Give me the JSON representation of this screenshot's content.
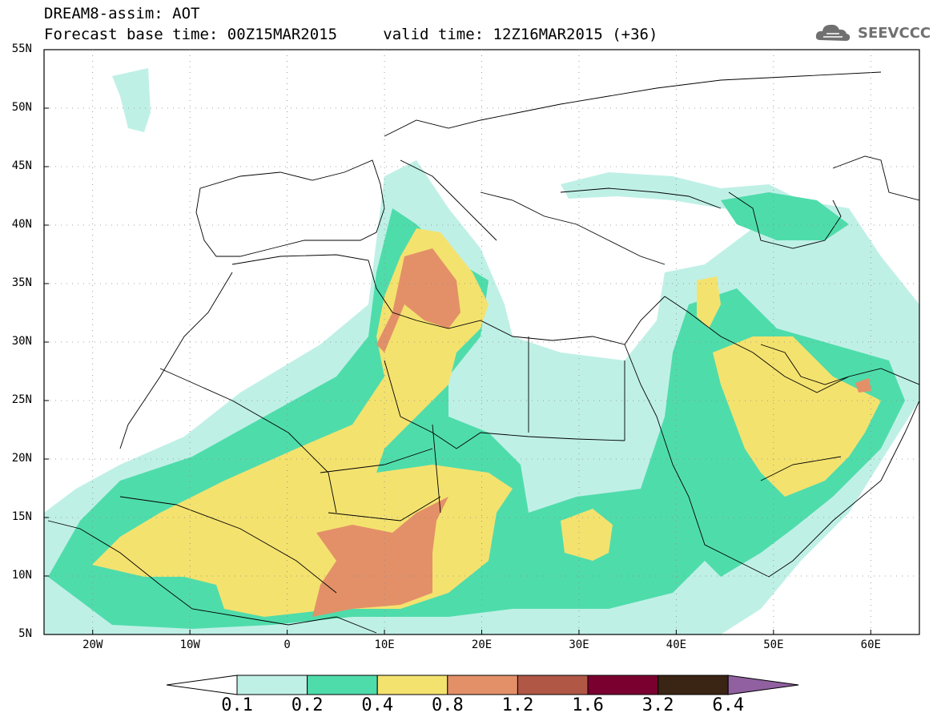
{
  "header": {
    "title": "DREAM8-assim: AOT",
    "base_time_label": "Forecast base time: 00Z15MAR2015",
    "valid_time_label": "valid time: 12Z16MAR2015 (+36)"
  },
  "logo": {
    "text": "SEEVCCC",
    "icon": "cloud-icon"
  },
  "map": {
    "lat_ticks": [
      "55N",
      "50N",
      "45N",
      "40N",
      "35N",
      "30N",
      "25N",
      "20N",
      "15N",
      "10N",
      "5N"
    ],
    "lat_values": [
      55,
      50,
      45,
      40,
      35,
      30,
      25,
      20,
      15,
      10,
      5
    ],
    "lon_ticks": [
      "20W",
      "10W",
      "0",
      "10E",
      "20E",
      "30E",
      "40E",
      "50E",
      "60E"
    ],
    "lon_values": [
      -20,
      -10,
      0,
      10,
      20,
      30,
      40,
      50,
      60
    ],
    "lon_range": [
      -25,
      65
    ],
    "lat_range": [
      5,
      55
    ]
  },
  "colorbar": {
    "labels": [
      "0.1",
      "0.2",
      "0.4",
      "0.8",
      "1.2",
      "1.6",
      "3.2",
      "6.4"
    ],
    "colors": [
      "#bff0e6",
      "#4fdcab",
      "#f4e26f",
      "#e39068",
      "#b05845",
      "#7a0030",
      "#3a2414",
      "#9060a0"
    ]
  }
}
